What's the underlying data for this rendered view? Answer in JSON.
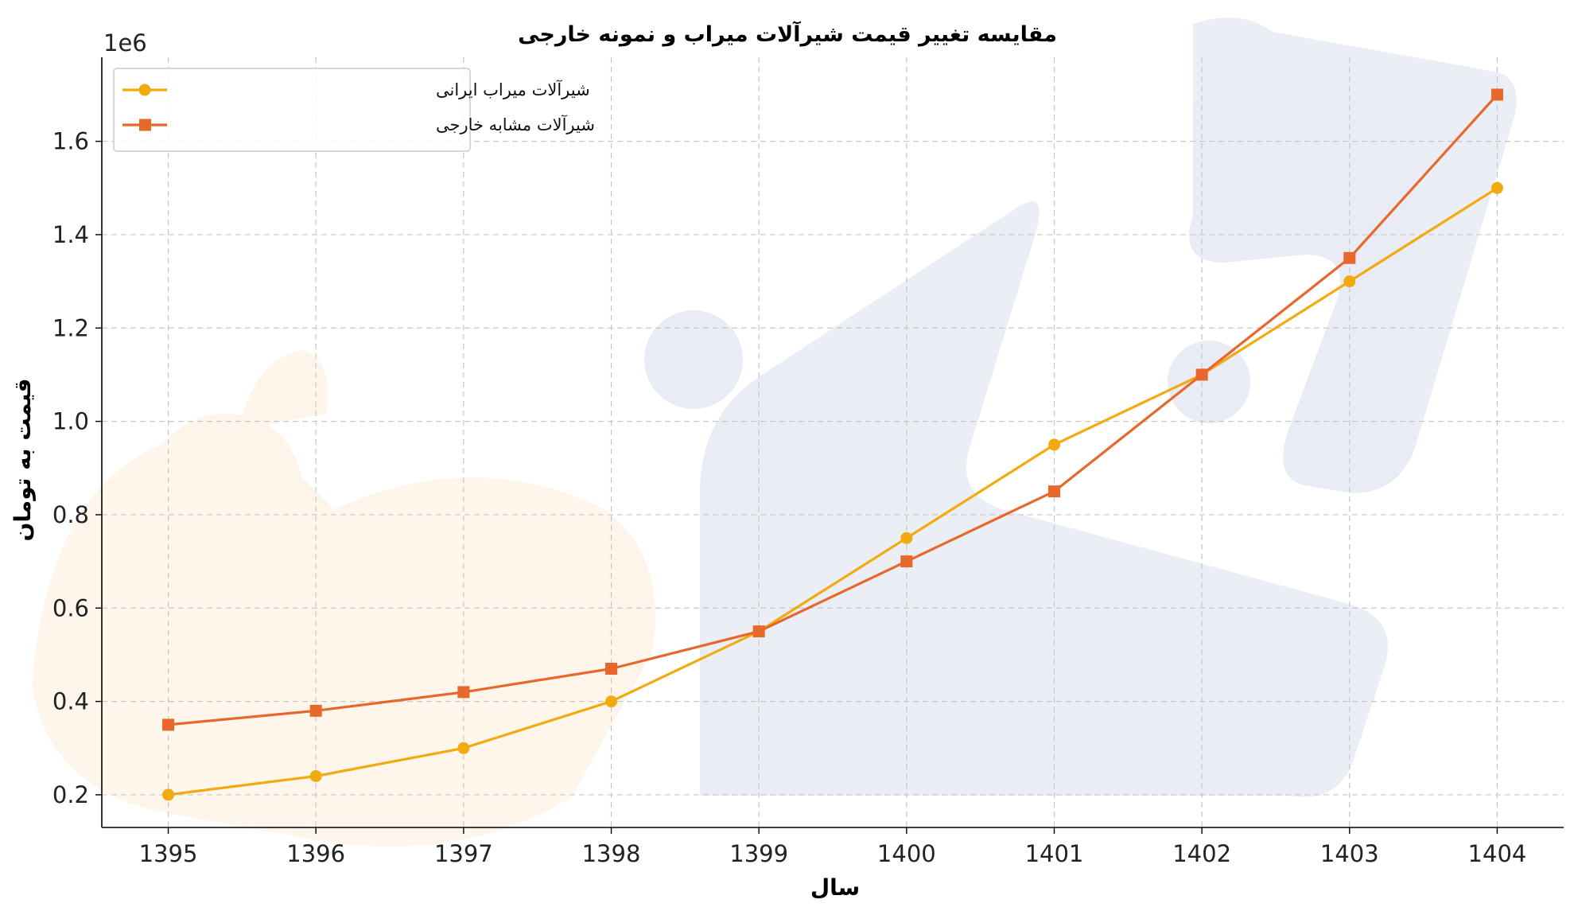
{
  "chart_data": {
    "type": "line",
    "title": "مقایسه تغییر قیمت شیرآلات میراب و نمونه خارجی",
    "xlabel": "سال",
    "ylabel": "قیمت به تومان",
    "y_offset_label": "1e6",
    "x": [
      "1395",
      "1396",
      "1397",
      "1398",
      "1399",
      "1400",
      "1401",
      "1402",
      "1403",
      "1404"
    ],
    "yticks": [
      "0.2",
      "0.4",
      "0.6",
      "0.8",
      "1.0",
      "1.2",
      "1.4",
      "1.6"
    ],
    "xlim": [
      1394.55,
      1404.45
    ],
    "ylim": [
      130000,
      1780000
    ],
    "grid": true,
    "legend_position": "top-left",
    "series": [
      {
        "name": "شیرآلات میراب ایرانی",
        "color": "#f2ab0f",
        "marker": "circle",
        "values": [
          200000,
          240000,
          300000,
          400000,
          550000,
          750000,
          950000,
          1100000,
          1300000,
          1500000
        ]
      },
      {
        "name": "شیرآلات مشابه خارجی",
        "color": "#e8672a",
        "marker": "square",
        "values": [
          350000,
          380000,
          420000,
          470000,
          550000,
          700000,
          850000,
          1100000,
          1350000,
          1700000
        ]
      }
    ]
  }
}
